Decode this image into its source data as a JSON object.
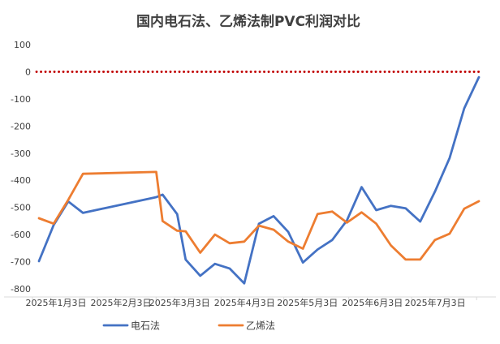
{
  "chart_data": {
    "type": "line",
    "title": "国内电石法、乙烯法制PVC利润对比",
    "xlabel": "",
    "ylabel": "",
    "ylim": [
      -800,
      100
    ],
    "yticks": [
      100,
      0,
      -100,
      -200,
      -300,
      -400,
      -500,
      -600,
      -700,
      -800
    ],
    "x_tick_labels": [
      "2025年1月3日",
      "2025年2月3日",
      "2025年3月3日",
      "2025年4月3日",
      "2025年5月3日",
      "2025年6月3日",
      "2025年7月3日"
    ],
    "grid": false,
    "legend_position": "bottom",
    "reference_line": {
      "y": 0,
      "style": "dotted",
      "color": "#C00000"
    },
    "series": [
      {
        "name": "电石法",
        "color": "#4472C4",
        "points": [
          {
            "x": "2025-01-03",
            "y": -698
          },
          {
            "x": "2025-01-10",
            "y": -565
          },
          {
            "x": "2025-01-17",
            "y": -478
          },
          {
            "x": "2025-01-24",
            "y": -520
          },
          {
            "x": "2025-02-28",
            "y": -462
          },
          {
            "x": "2025-03-03",
            "y": -453
          },
          {
            "x": "2025-03-10",
            "y": -525
          },
          {
            "x": "2025-03-14",
            "y": -692
          },
          {
            "x": "2025-03-21",
            "y": -752
          },
          {
            "x": "2025-03-28",
            "y": -708
          },
          {
            "x": "2025-04-04",
            "y": -725
          },
          {
            "x": "2025-04-11",
            "y": -780
          },
          {
            "x": "2025-04-18",
            "y": -560
          },
          {
            "x": "2025-04-25",
            "y": -532
          },
          {
            "x": "2025-05-02",
            "y": -590
          },
          {
            "x": "2025-05-09",
            "y": -703
          },
          {
            "x": "2025-05-16",
            "y": -655
          },
          {
            "x": "2025-05-23",
            "y": -620
          },
          {
            "x": "2025-05-30",
            "y": -548
          },
          {
            "x": "2025-06-06",
            "y": -425
          },
          {
            "x": "2025-06-13",
            "y": -510
          },
          {
            "x": "2025-06-20",
            "y": -494
          },
          {
            "x": "2025-06-27",
            "y": -503
          },
          {
            "x": "2025-07-04",
            "y": -552
          },
          {
            "x": "2025-07-11",
            "y": -442
          },
          {
            "x": "2025-07-18",
            "y": -318
          },
          {
            "x": "2025-07-25",
            "y": -135
          },
          {
            "x": "2025-08-01",
            "y": -20
          }
        ]
      },
      {
        "name": "乙烯法",
        "color": "#ED7D31",
        "points": [
          {
            "x": "2025-01-03",
            "y": -540
          },
          {
            "x": "2025-01-10",
            "y": -560
          },
          {
            "x": "2025-01-17",
            "y": -472
          },
          {
            "x": "2025-01-24",
            "y": -376
          },
          {
            "x": "2025-02-28",
            "y": -369
          },
          {
            "x": "2025-03-03",
            "y": -550
          },
          {
            "x": "2025-03-10",
            "y": -586
          },
          {
            "x": "2025-03-14",
            "y": -588
          },
          {
            "x": "2025-03-21",
            "y": -667
          },
          {
            "x": "2025-03-28",
            "y": -600
          },
          {
            "x": "2025-04-04",
            "y": -632
          },
          {
            "x": "2025-04-11",
            "y": -626
          },
          {
            "x": "2025-04-18",
            "y": -567
          },
          {
            "x": "2025-04-25",
            "y": -582
          },
          {
            "x": "2025-05-02",
            "y": -626
          },
          {
            "x": "2025-05-09",
            "y": -652
          },
          {
            "x": "2025-05-16",
            "y": -524
          },
          {
            "x": "2025-05-23",
            "y": -515
          },
          {
            "x": "2025-05-30",
            "y": -556
          },
          {
            "x": "2025-06-06",
            "y": -518
          },
          {
            "x": "2025-06-13",
            "y": -560
          },
          {
            "x": "2025-06-20",
            "y": -640
          },
          {
            "x": "2025-06-27",
            "y": -692
          },
          {
            "x": "2025-07-04",
            "y": -692
          },
          {
            "x": "2025-07-11",
            "y": -620
          },
          {
            "x": "2025-07-18",
            "y": -597
          },
          {
            "x": "2025-07-25",
            "y": -505
          },
          {
            "x": "2025-08-01",
            "y": -477
          }
        ]
      }
    ]
  }
}
